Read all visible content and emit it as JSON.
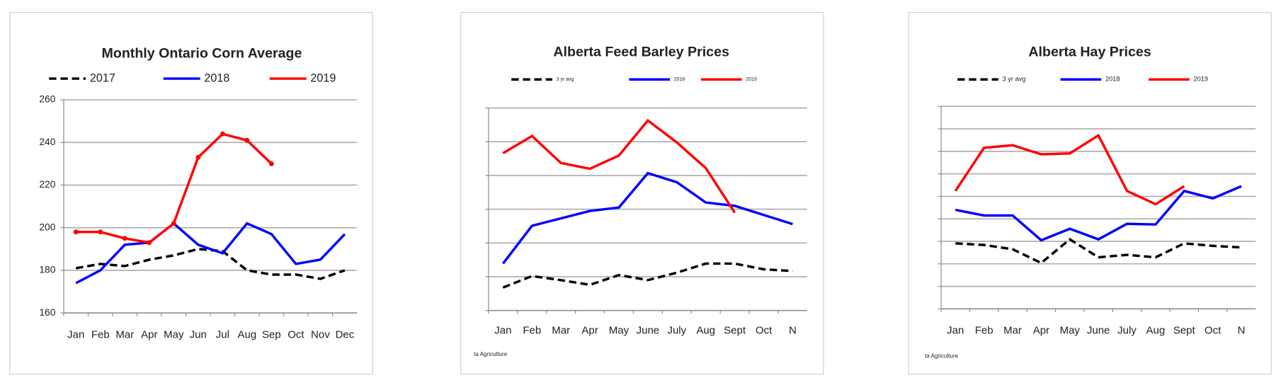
{
  "chart_data": [
    {
      "type": "line",
      "title": "Monthly Ontario Corn Average",
      "categories": [
        "Jan",
        "Feb",
        "Mar",
        "Apr",
        "May",
        "Jun",
        "Jul",
        "Aug",
        "Sep",
        "Oct",
        "Nov",
        "Dec"
      ],
      "series": [
        {
          "name": "2017",
          "color": "#000000",
          "dash": true,
          "markers": false,
          "values": [
            181,
            183,
            182,
            185,
            187,
            190,
            189,
            180,
            178,
            178,
            176,
            180
          ]
        },
        {
          "name": "2018",
          "color": "#0000ff",
          "dash": false,
          "markers": false,
          "values": [
            174,
            180,
            192,
            193,
            202,
            192,
            188,
            202,
            197,
            183,
            185,
            197
          ]
        },
        {
          "name": "2019",
          "color": "#ff0000",
          "dash": false,
          "markers": true,
          "values": [
            198,
            198,
            195,
            193,
            202,
            233,
            244,
            241,
            230,
            null,
            null,
            null
          ]
        }
      ],
      "ylim": [
        160,
        260
      ],
      "yticks": [
        160,
        180,
        200,
        220,
        240,
        260
      ],
      "show_ytick_labels": true,
      "grid": true
    },
    {
      "type": "line",
      "title": "Alberta Feed Barley Prices",
      "categories": [
        "Jan",
        "Feb",
        "Mar",
        "Apr",
        "May",
        "June",
        "July",
        "Aug",
        "Sept",
        "Oct",
        "N"
      ],
      "series": [
        {
          "name": "3 yr avg",
          "color": "#000000",
          "dash": true,
          "markers": false,
          "values": [
            0.68,
            1.02,
            0.9,
            0.76,
            1.05,
            0.9,
            1.12,
            1.39,
            1.39,
            1.22,
            1.17
          ]
        },
        {
          "name": "2018",
          "color": "#0000ff",
          "dash": false,
          "markers": false,
          "values": [
            1.39,
            2.51,
            2.73,
            2.95,
            3.05,
            4.07,
            3.8,
            3.2,
            3.1,
            2.83,
            2.56
          ]
        },
        {
          "name": "2019",
          "color": "#ff0000",
          "dash": false,
          "markers": false,
          "values": [
            4.66,
            5.17,
            4.37,
            4.2,
            4.59,
            5.63,
            4.98,
            4.22,
            2.9,
            null,
            null
          ]
        }
      ],
      "ylim": [
        0,
        6
      ],
      "yticks": [
        0,
        1,
        2,
        3,
        4,
        5,
        6
      ],
      "show_ytick_labels": false,
      "grid": true,
      "footnote": "ta Agriculture"
    },
    {
      "type": "line",
      "title": "Alberta Hay Prices",
      "categories": [
        "Jan",
        "Feb",
        "Mar",
        "Apr",
        "May",
        "June",
        "July",
        "Aug",
        "Sept",
        "Oct",
        "N"
      ],
      "series": [
        {
          "name": "3 yr avg",
          "color": "#000000",
          "dash": true,
          "markers": false,
          "values": [
            2.91,
            2.84,
            2.65,
            2.04,
            3.09,
            2.29,
            2.4,
            2.29,
            2.91,
            2.8,
            2.73
          ]
        },
        {
          "name": "2018",
          "color": "#0000ff",
          "dash": false,
          "markers": false,
          "values": [
            4.4,
            4.15,
            4.15,
            3.05,
            3.56,
            3.09,
            3.78,
            3.75,
            5.24,
            4.91,
            5.45
          ]
        },
        {
          "name": "2019",
          "color": "#ff0000",
          "dash": false,
          "markers": false,
          "values": [
            5.24,
            7.16,
            7.27,
            6.87,
            6.91,
            7.71,
            5.24,
            4.65,
            5.45,
            null,
            null
          ]
        }
      ],
      "ylim": [
        0,
        9
      ],
      "yticks": [
        0,
        1,
        2,
        3,
        4,
        5,
        6,
        7,
        8,
        9
      ],
      "show_ytick_labels": false,
      "grid": true,
      "footnote": "ta Agriculture"
    }
  ]
}
